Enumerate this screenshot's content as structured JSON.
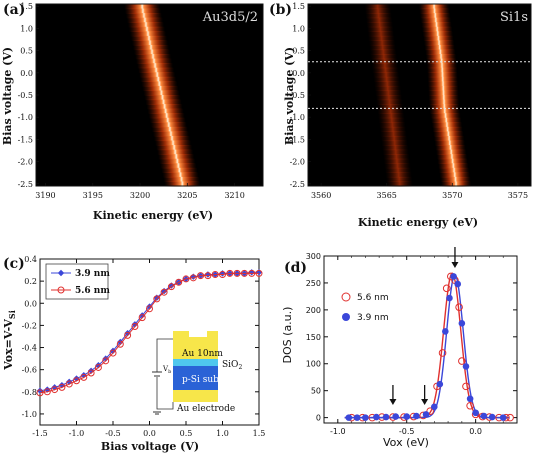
{
  "chart_data": [
    {
      "type": "heatmap",
      "panel_label": "(a)",
      "annotation": "Au3d5/2",
      "xlabel": "Kinetic energy (eV)",
      "ylabel": "Bias voltage (V)",
      "xlim": [
        3189,
        3213
      ],
      "ylim": [
        -2.55,
        1.55
      ],
      "x_ticks": [
        "3190",
        "3195",
        "3200",
        "3205",
        "3210"
      ],
      "y_ticks": [
        "1.5",
        "1.0",
        "0.5",
        "0.0",
        "-0.5",
        "-1.0",
        "-1.5",
        "-2.0",
        "-2.5"
      ],
      "peaks": [
        {
          "bias": 1.5,
          "energy": 3200.2,
          "width": 1.6,
          "intensity": 1.0
        },
        {
          "bias": 0.25,
          "energy": 3201.5,
          "width": 1.6,
          "intensity": 1.0
        },
        {
          "bias": -2.5,
          "energy": 3204.5,
          "width": 1.7,
          "intensity": 1.0
        }
      ]
    },
    {
      "type": "heatmap",
      "panel_label": "(b)",
      "annotation": "Si1s",
      "xlabel": "Kinetic energy (eV)",
      "ylabel": "Bias voltage (V)",
      "xlim": [
        3559,
        3576
      ],
      "ylim": [
        -2.55,
        1.55
      ],
      "x_ticks": [
        "3560",
        "3565",
        "3570",
        "3575"
      ],
      "y_ticks": [
        "1.5",
        "1.0",
        "0.5",
        "0.0",
        "-0.5",
        "-1.0",
        "-1.5",
        "-2.0",
        "-2.5"
      ],
      "reference_lines": [
        0.25,
        -0.8
      ],
      "main_peak": [
        {
          "bias": 1.5,
          "energy": 3568.6
        },
        {
          "bias": 0.25,
          "energy": 3569.2
        },
        {
          "bias": -0.8,
          "energy": 3569.4
        },
        {
          "bias": -2.5,
          "energy": 3570.3
        }
      ],
      "weak_peak": [
        {
          "bias": 1.5,
          "energy": 3564.3
        },
        {
          "bias": -2.5,
          "energy": 3566.0
        }
      ]
    },
    {
      "type": "line",
      "panel_label": "(c)",
      "xlabel": "Bias voltage (V)",
      "ylabel": "Vox=V-V",
      "ylabel_sub": "Si",
      "xlim": [
        -1.5,
        1.5
      ],
      "ylim": [
        -1.1,
        0.4
      ],
      "x_ticks": [
        "-1.5",
        "-1.0",
        "-0.5",
        "0.0",
        "0.5",
        "1.0",
        "1.5"
      ],
      "y_ticks": [
        "0.4",
        "0.2",
        "0.0",
        "-0.2",
        "-0.4",
        "-0.6",
        "-0.8",
        "-1.0"
      ],
      "legend": [
        "3.9 nm",
        "5.6 nm"
      ],
      "colors": {
        "s39": "#3b47d9",
        "s56": "#e0302e"
      },
      "x": [
        -1.5,
        -1.4,
        -1.3,
        -1.2,
        -1.1,
        -1.0,
        -0.9,
        -0.8,
        -0.7,
        -0.6,
        -0.5,
        -0.4,
        -0.3,
        -0.2,
        -0.1,
        0.0,
        0.1,
        0.2,
        0.3,
        0.4,
        0.5,
        0.6,
        0.7,
        0.8,
        0.9,
        1.0,
        1.1,
        1.2,
        1.3,
        1.4,
        1.5
      ],
      "series": [
        {
          "name": "3.9 nm",
          "values": [
            -0.79,
            -0.78,
            -0.76,
            -0.74,
            -0.71,
            -0.68,
            -0.65,
            -0.61,
            -0.56,
            -0.5,
            -0.43,
            -0.35,
            -0.27,
            -0.19,
            -0.11,
            -0.03,
            0.05,
            0.11,
            0.16,
            0.19,
            0.22,
            0.24,
            0.25,
            0.26,
            0.26,
            0.27,
            0.27,
            0.27,
            0.27,
            0.28,
            0.28
          ]
        },
        {
          "name": "5.6 nm",
          "values": [
            -0.81,
            -0.8,
            -0.78,
            -0.76,
            -0.73,
            -0.7,
            -0.67,
            -0.63,
            -0.58,
            -0.52,
            -0.45,
            -0.37,
            -0.29,
            -0.21,
            -0.13,
            -0.05,
            0.04,
            0.1,
            0.15,
            0.19,
            0.22,
            0.23,
            0.25,
            0.25,
            0.26,
            0.26,
            0.27,
            0.27,
            0.27,
            0.27,
            0.27
          ]
        }
      ],
      "inset": {
        "labels": [
          "Au 10nm",
          "SiO",
          "p-Si sub",
          "Au electrode"
        ],
        "sio2_sub": "2",
        "vb_label": "V",
        "vb_sub": "b"
      }
    },
    {
      "type": "line",
      "panel_label": "(d)",
      "xlabel": "Vox (eV)",
      "ylabel": "DOS (a.u.)",
      "xlim": [
        -1.1,
        0.3
      ],
      "ylim": [
        -10,
        300
      ],
      "x_ticks": [
        "-1.0",
        "-0.5",
        "0.0"
      ],
      "y_ticks": [
        "0",
        "50",
        "100",
        "150",
        "200",
        "250",
        "300"
      ],
      "legend": [
        "5.6 nm",
        "3.9 nm"
      ],
      "colors": {
        "s39": "#3b47d9",
        "s56": "#e0302e"
      },
      "arrows_at_x": [
        -0.6,
        -0.37,
        -0.15
      ],
      "series": [
        {
          "name": "5.6 nm",
          "peak_center": -0.17,
          "peak_height": 268,
          "peak_sigma": 0.062,
          "points": [
            [
              -0.9,
              0
            ],
            [
              -0.82,
              0
            ],
            [
              -0.75,
              0
            ],
            [
              -0.68,
              1
            ],
            [
              -0.6,
              1
            ],
            [
              -0.52,
              1
            ],
            [
              -0.45,
              2
            ],
            [
              -0.38,
              4
            ],
            [
              -0.33,
              12
            ],
            [
              -0.28,
              58
            ],
            [
              -0.24,
              120
            ],
            [
              -0.21,
              240
            ],
            [
              -0.18,
              262
            ],
            [
              -0.15,
              255
            ],
            [
              -0.12,
              205
            ],
            [
              -0.1,
              105
            ],
            [
              -0.07,
              58
            ],
            [
              -0.04,
              22
            ],
            [
              0.0,
              6
            ],
            [
              0.05,
              2
            ],
            [
              0.1,
              1
            ],
            [
              0.17,
              0
            ],
            [
              0.22,
              0
            ],
            [
              0.25,
              0
            ]
          ]
        },
        {
          "name": "3.9 nm",
          "peak_center": -0.15,
          "peak_height": 265,
          "peak_sigma": 0.06,
          "points": [
            [
              -0.92,
              0
            ],
            [
              -0.86,
              0
            ],
            [
              -0.8,
              0
            ],
            [
              -0.72,
              1
            ],
            [
              -0.65,
              1
            ],
            [
              -0.58,
              2
            ],
            [
              -0.5,
              2
            ],
            [
              -0.43,
              3
            ],
            [
              -0.36,
              6
            ],
            [
              -0.3,
              20
            ],
            [
              -0.26,
              62
            ],
            [
              -0.22,
              160
            ],
            [
              -0.19,
              222
            ],
            [
              -0.16,
              262
            ],
            [
              -0.13,
              248
            ],
            [
              -0.1,
              175
            ],
            [
              -0.07,
              95
            ],
            [
              -0.04,
              35
            ],
            [
              0.0,
              9
            ],
            [
              0.06,
              3
            ],
            [
              0.12,
              1
            ],
            [
              0.2,
              0
            ]
          ]
        }
      ]
    }
  ]
}
